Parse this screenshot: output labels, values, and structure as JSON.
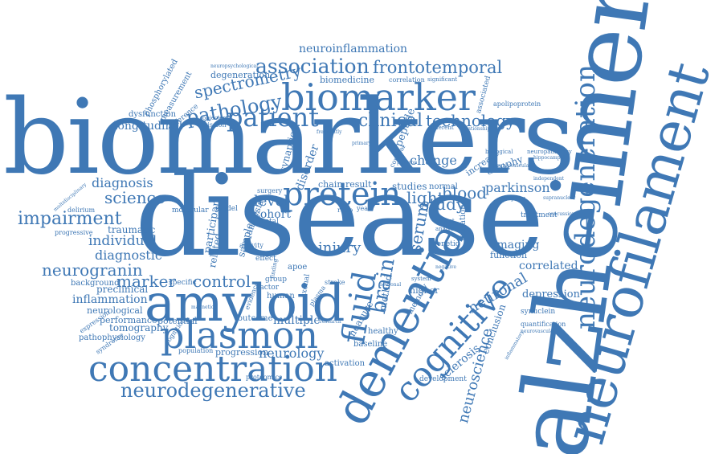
{
  "theme": {
    "word_color": "#3f78b5",
    "background": "#ffffff"
  },
  "words": {
    "biomarkers": "biomarkers",
    "disease": "disease",
    "alzheimer": "alzheimer",
    "neurofilament": "neurofilament",
    "neurodegeneration": "neurodegeneration",
    "amyloid": "amyloid",
    "plasmon": "plasmon",
    "concentration": "concentration",
    "dementia": "dementia",
    "cognitive": "cognitive",
    "biomarker": "biomarker",
    "protein": "protein",
    "patient": "patient",
    "association": "association",
    "frontotemporal": "frontotemporal",
    "neuroinflammation": "neuroinflammation",
    "pathology": "pathology",
    "spectrometry": "spectrometry",
    "clinical": "clinical",
    "technology": "technology",
    "neurodegenerative": "neurodegenerative",
    "impairment": "impairment",
    "science": "science",
    "diagnosis": "diagnosis",
    "neurogranin": "neurogranin",
    "individual": "individual",
    "diagnostic": "diagnostic",
    "marker": "marker",
    "control": "control",
    "inflammation": "inflammation",
    "preclinical": "preclinical",
    "neurological": "neurological",
    "tomography": "tomography",
    "performance": "performance",
    "pathophysiology": "pathophysiology",
    "potential": "potential",
    "multiple": "multiple",
    "outcome": "outcome",
    "neurology": "neurology",
    "progression": "progression",
    "population": "population",
    "fluid": "fluid",
    "brain": "brain",
    "injury": "injury",
    "level": "level",
    "cohort": "cohort",
    "blood": "blood",
    "study": "study",
    "light": "light",
    "parkinson": "parkinson",
    "serum": "serum",
    "neuronal": "neuronal",
    "neuroscience": "neuroscience",
    "sclerosis": "sclerosis",
    "conclusion": "conclusion",
    "imaging": "imaging",
    "correlated": "correlated",
    "depression": "depression",
    "change": "change",
    "studies": "studies",
    "result": "result",
    "chain": "chain",
    "biomedicine": "biomedicine",
    "degeneration": "degeneration",
    "measurement": "measurement",
    "longitudinal": "longitudinal",
    "dysfunction": "dysfunction",
    "emission": "emission",
    "phosphorylated": "phosphorylated",
    "progressive": "progressive",
    "traumatic": "traumatic",
    "background": "background",
    "human": "human",
    "apoe": "apoe",
    "activation": "activation",
    "baseline": "baseline",
    "development": "development",
    "healthy": "healthy",
    "method": "method",
    "increase": "increase",
    "atrophy": "atrophy",
    "peptide": "peptide",
    "disorder": "disorder",
    "synaptic": "synaptic",
    "function": "function",
    "mutation": "mutation",
    "participan": "participan",
    "related": "related",
    "sample": "sample",
    "analysis": "analysis",
    "model": "model",
    "delirium": "delirium",
    "expression": "expression",
    "syndrome": "syndrome",
    "specific": "specific",
    "treatment": "treatment",
    "synuclein": "synuclein",
    "quantification": "quantification",
    "apolipoprotein": "apolipoprotein",
    "associated": "associated",
    "correlation": "correlation",
    "significant": "significant",
    "neuropsychological": "neuropsychological",
    "difference": "difference",
    "objective": "objective",
    "higher": "higher",
    "memory": "memory",
    "genetic": "genetic",
    "normal": "normal",
    "group": "group",
    "factor": "factor",
    "effect": "effect",
    "total": "total",
    "stroke": "stroke",
    "proteomics": "proteomics",
    "independent": "independent",
    "hippocampal": "hippocampal",
    "neuropathology": "neuropathology",
    "supranuclear": "supranuclear",
    "symptom": "symptom",
    "relationship": "relationship",
    "different": "different",
    "biological": "biological",
    "molecular": "molecular",
    "surgery": "surgery",
    "ratio": "ratio",
    "year": "year",
    "cortical": "cortical",
    "system": "system",
    "subject": "subject",
    "analyte": "analyte",
    "multidisciplinary": "multidisciplinary",
    "magnetic": "magnetic",
    "cognition": "cognition",
    "research": "research",
    "evidence": "evidence",
    "plasma": "plasma",
    "activity": "activity",
    "finding": "finding",
    "axonal": "axonal",
    "measure": "measure",
    "positron": "positron",
    "neuronal2": "neuronal",
    "cerebrovascular": "cerebrovascular",
    "inflammatory": "inflammatory",
    "neurovascular": "neurovascular",
    "concussion": "concussion",
    "negative": "negative",
    "frequently": "frequently",
    "primary": "primary"
  }
}
